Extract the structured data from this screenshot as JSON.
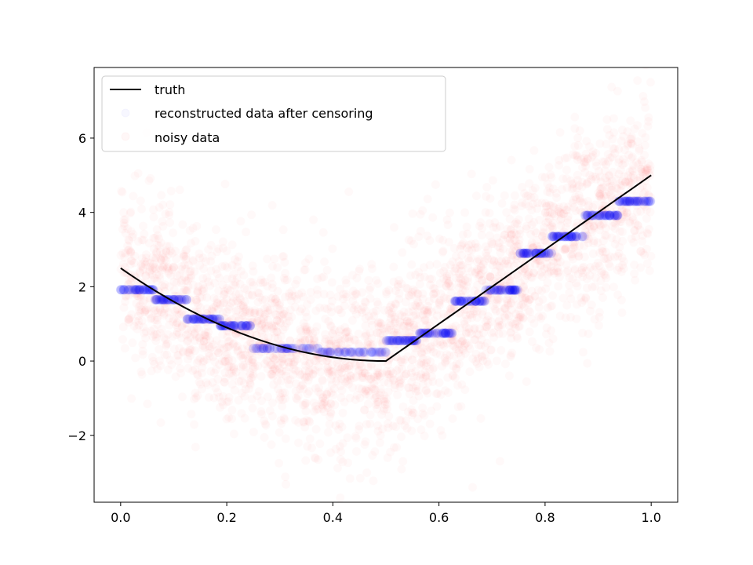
{
  "chart_data": {
    "type": "scatter",
    "title": "",
    "xlabel": "",
    "ylabel": "",
    "xlim": [
      -0.05,
      1.05
    ],
    "ylim": [
      -3.8,
      7.9
    ],
    "grid": false,
    "legend_placement": "top-left",
    "x_ticks": [
      {
        "value": 0.0,
        "label": "0.0"
      },
      {
        "value": 0.2,
        "label": "0.2"
      },
      {
        "value": 0.4,
        "label": "0.4"
      },
      {
        "value": 0.6,
        "label": "0.6"
      },
      {
        "value": 0.8,
        "label": "0.8"
      },
      {
        "value": 1.0,
        "label": "1.0"
      }
    ],
    "y_ticks": [
      {
        "value": -2,
        "label": "−2"
      },
      {
        "value": 0,
        "label": "0"
      },
      {
        "value": 2,
        "label": "2"
      },
      {
        "value": 4,
        "label": "4"
      },
      {
        "value": 6,
        "label": "6"
      }
    ],
    "series": [
      {
        "name": "truth",
        "kind": "line",
        "color": "#000000",
        "x": [
          0.0,
          0.5,
          1.0
        ],
        "y": [
          2.5,
          0.0,
          5.0
        ],
        "shape": "quadratic-then-linear"
      },
      {
        "name": "reconstructed data after censoring",
        "kind": "scatter",
        "color": "#0000ff",
        "segments": [
          {
            "x0": 0.0,
            "x1": 0.0625,
            "y": 1.92
          },
          {
            "x0": 0.0625,
            "x1": 0.125,
            "y": 1.65
          },
          {
            "x0": 0.125,
            "x1": 0.1875,
            "y": 1.13
          },
          {
            "x0": 0.1875,
            "x1": 0.25,
            "y": 0.95
          },
          {
            "x0": 0.25,
            "x1": 0.375,
            "y": 0.34
          },
          {
            "x0": 0.375,
            "x1": 0.5,
            "y": 0.24
          },
          {
            "x0": 0.5,
            "x1": 0.5625,
            "y": 0.55
          },
          {
            "x0": 0.5625,
            "x1": 0.625,
            "y": 0.75
          },
          {
            "x0": 0.625,
            "x1": 0.6875,
            "y": 1.61
          },
          {
            "x0": 0.6875,
            "x1": 0.75,
            "y": 1.91
          },
          {
            "x0": 0.75,
            "x1": 0.8125,
            "y": 2.9
          },
          {
            "x0": 0.8125,
            "x1": 0.875,
            "y": 3.35
          },
          {
            "x0": 0.875,
            "x1": 0.9375,
            "y": 3.92
          },
          {
            "x0": 0.9375,
            "x1": 1.0,
            "y": 4.3
          }
        ]
      },
      {
        "name": "noisy data",
        "kind": "scatter",
        "color": "#ff0000",
        "noise_sd": 1.2,
        "n_points": 3000
      }
    ]
  }
}
